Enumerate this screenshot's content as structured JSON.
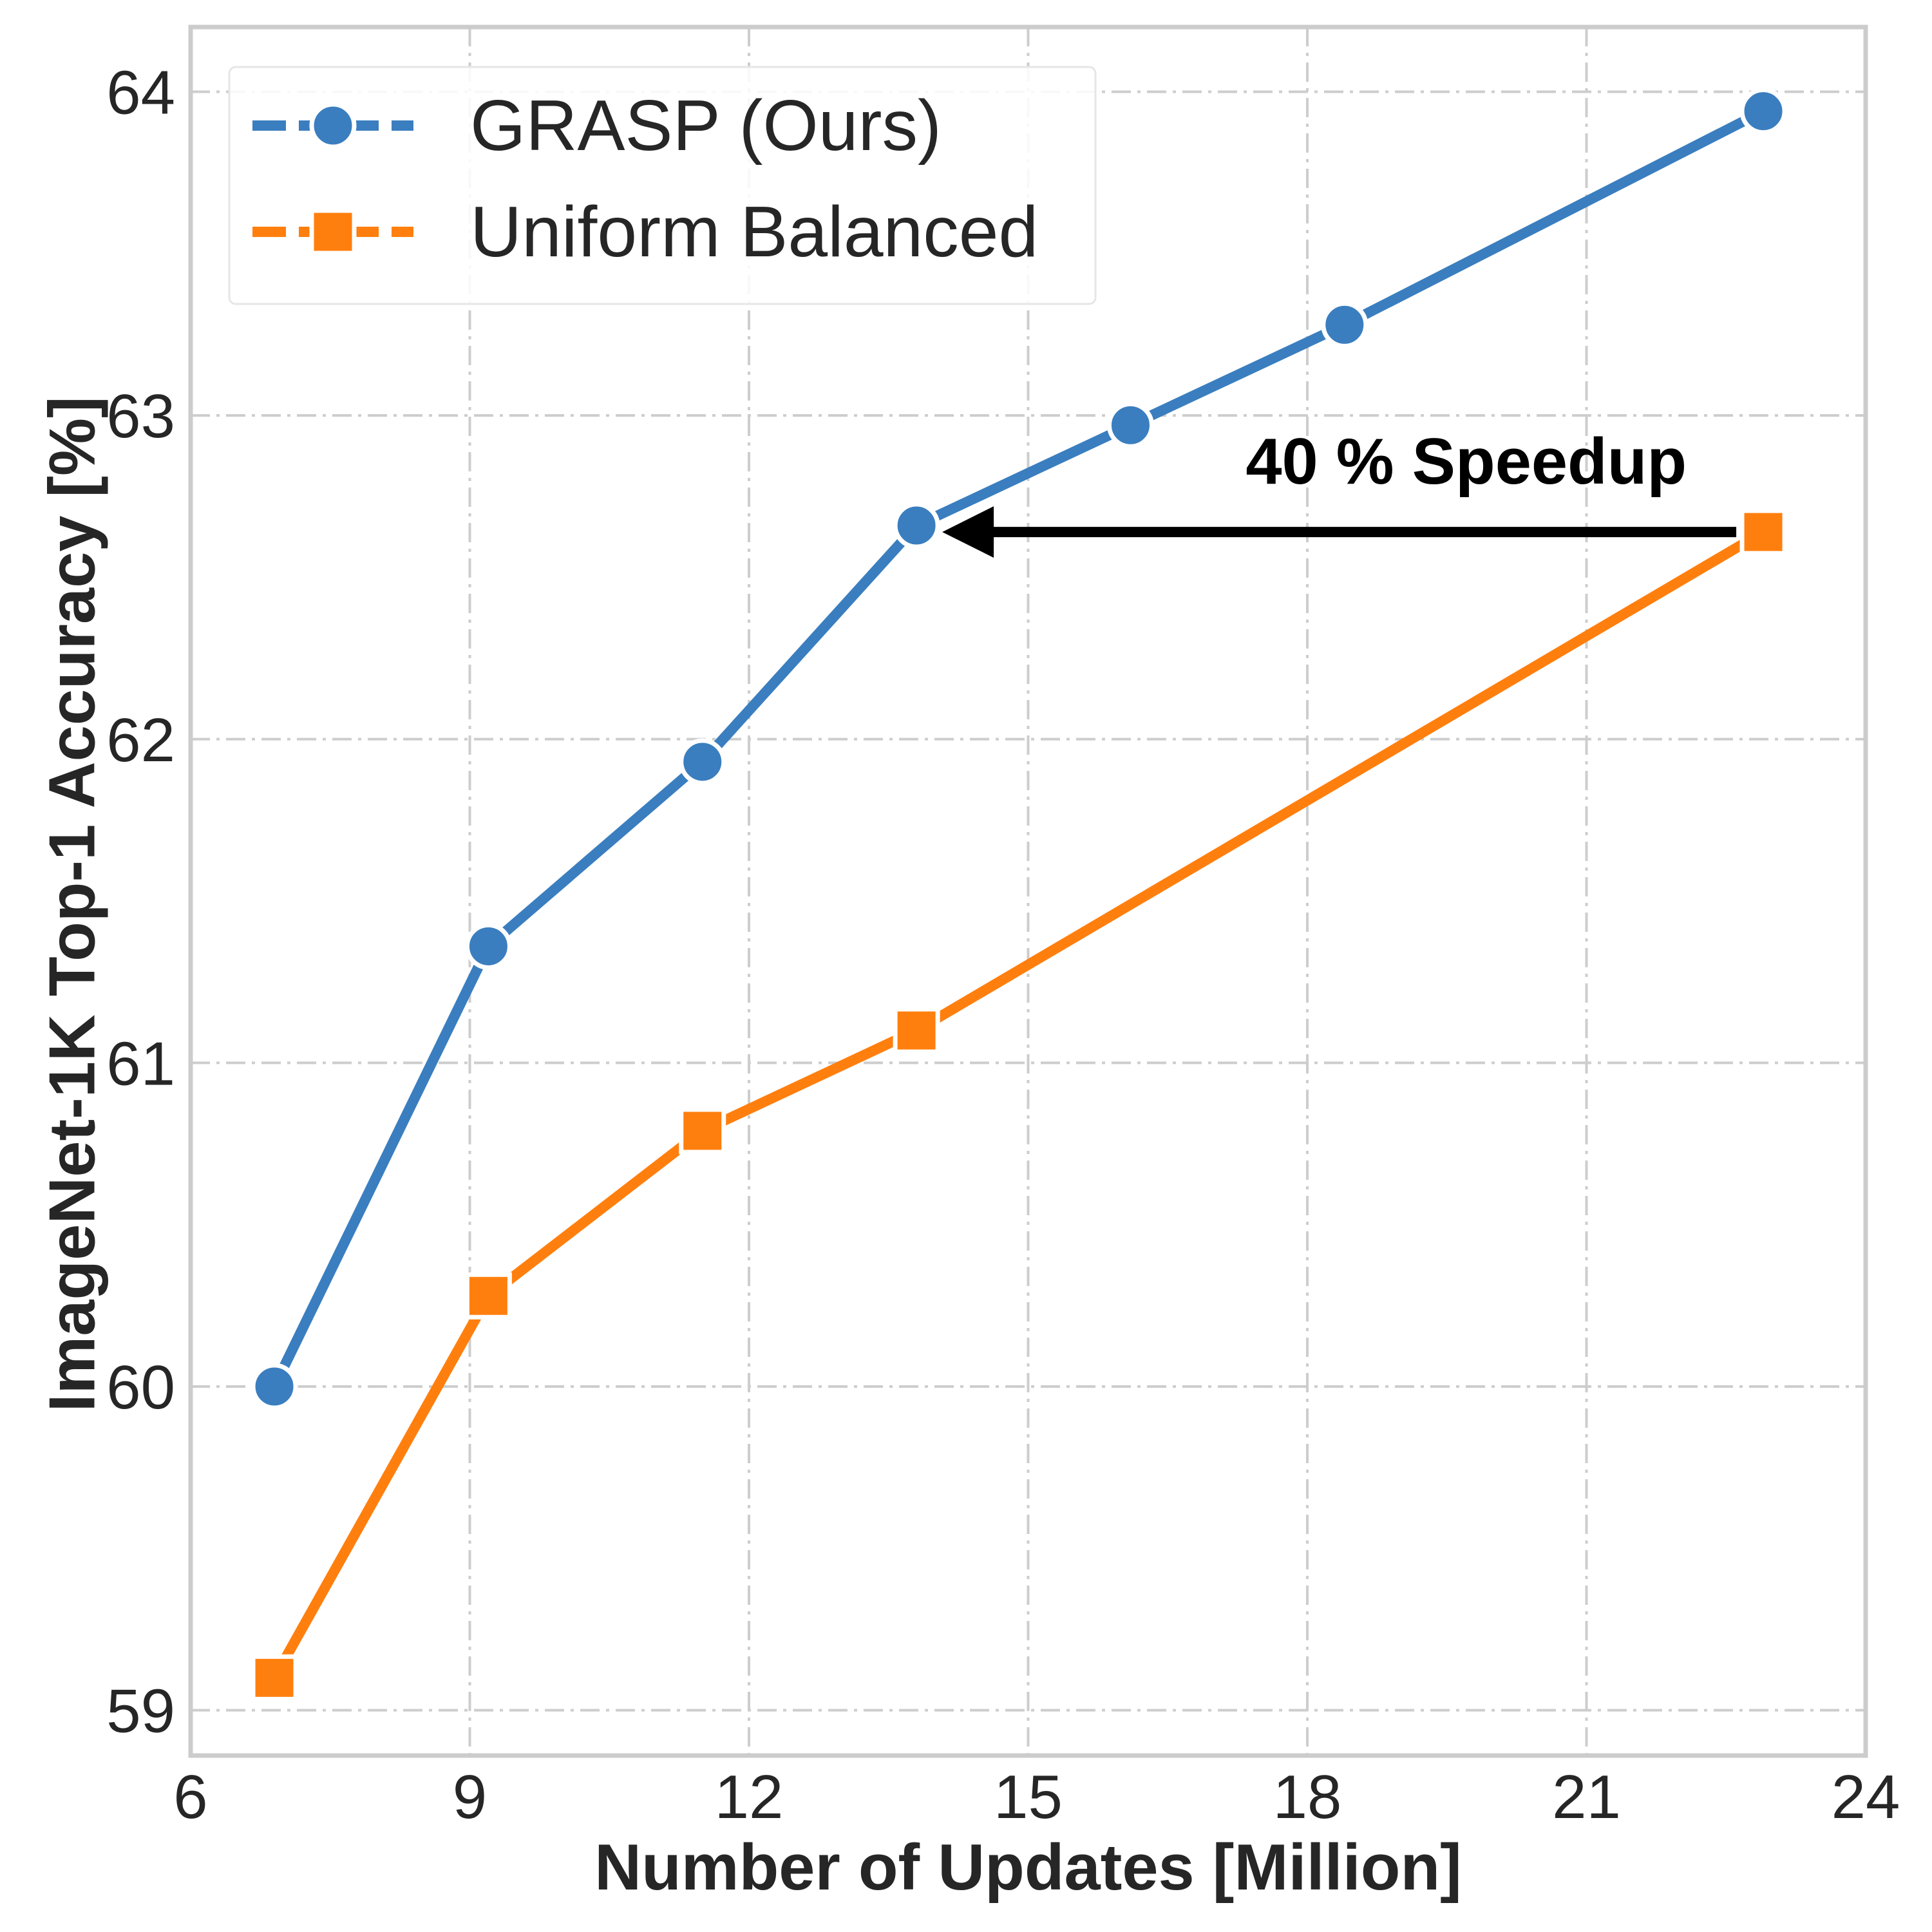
{
  "chart_data": {
    "type": "line",
    "x_label": "Number of Updates [Million]",
    "y_label": "ImageNet-1K Top-1 Accuracy [%]",
    "xlim": [
      6,
      24
    ],
    "ylim": [
      58.86,
      64.2
    ],
    "x_ticks": [
      "6",
      "9",
      "12",
      "15",
      "18",
      "21",
      "24"
    ],
    "x_tick_values": [
      6,
      9,
      12,
      15,
      18,
      21,
      24
    ],
    "y_ticks": [
      "59",
      "60",
      "61",
      "62",
      "63",
      "64"
    ],
    "y_tick_values": [
      59,
      60,
      61,
      62,
      63,
      64
    ],
    "grid": true,
    "legend_position": "top-left",
    "series": [
      {
        "name": "GRASP (Ours)",
        "color": "#3a7ebf",
        "marker": "circle",
        "x": [
          6.9,
          9.2,
          11.5,
          13.8,
          16.1,
          18.4,
          22.9
        ],
        "y": [
          60.0,
          61.36,
          61.93,
          62.66,
          62.97,
          63.28,
          63.94
        ]
      },
      {
        "name": "Uniform Balanced",
        "color": "#ff7f0e",
        "marker": "square",
        "x": [
          6.9,
          9.2,
          11.5,
          13.8,
          22.9
        ],
        "y": [
          59.1,
          60.28,
          60.79,
          61.1,
          62.64
        ]
      }
    ],
    "annotation": {
      "text": "40 % Speedup",
      "arrow_from": [
        22.9,
        62.64
      ],
      "arrow_to": [
        13.8,
        62.64
      ]
    }
  }
}
